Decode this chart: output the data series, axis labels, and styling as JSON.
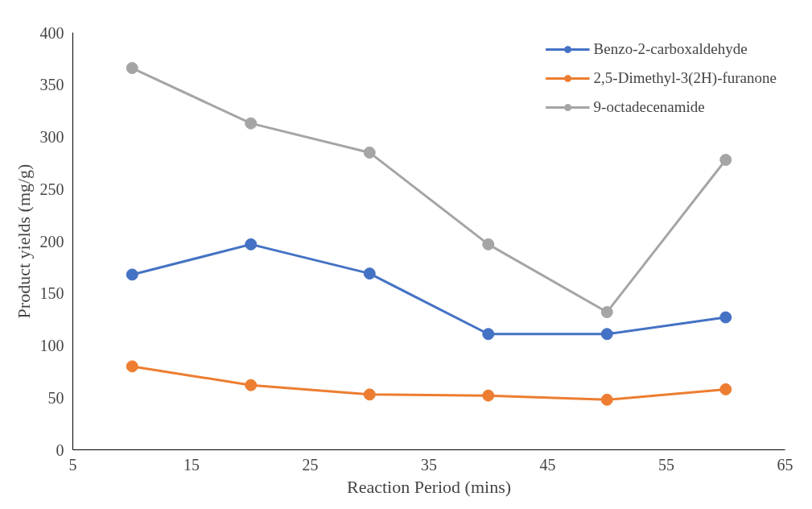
{
  "chart_data": {
    "type": "line",
    "xlabel": "Reaction Period (mins)",
    "ylabel": "Product yields (mg/g)",
    "x": [
      10,
      20,
      30,
      40,
      50,
      60
    ],
    "series": [
      {
        "name": "Benzo-2-carboxaldehyde",
        "color": "#4472c4",
        "values": [
          168,
          197,
          169,
          111,
          111,
          127
        ]
      },
      {
        "name": "2,5-Dimethyl-3(2H)-furanone",
        "color": "#ed7d31",
        "values": [
          80,
          62,
          53,
          52,
          48,
          58
        ]
      },
      {
        "name": "9-octadecenamide",
        "color": "#a5a5a5",
        "values": [
          366,
          313,
          285,
          197,
          132,
          278
        ]
      }
    ],
    "xlim": [
      5,
      65
    ],
    "xticks": [
      5,
      15,
      25,
      35,
      45,
      55,
      65
    ],
    "ylim": [
      0,
      400
    ],
    "yticks": [
      0,
      50,
      100,
      150,
      200,
      250,
      300,
      350,
      400
    ],
    "grid": false,
    "legend": "top right",
    "marker": "circle"
  }
}
